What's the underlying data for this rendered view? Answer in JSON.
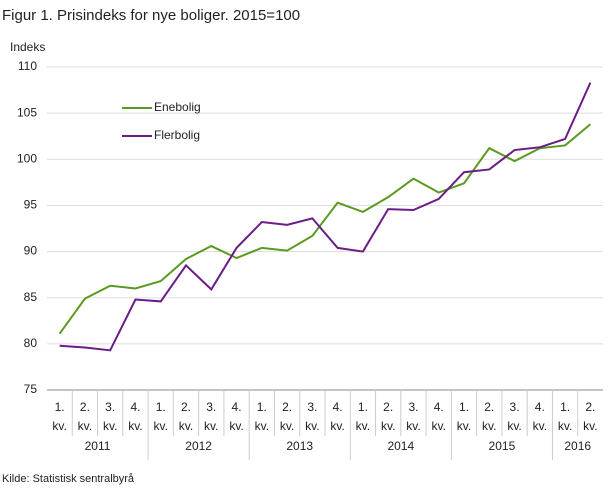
{
  "chart_data": {
    "type": "line",
    "title": "Figur 1. Prisindeks for nye boliger. 2015=100",
    "y_label": "Indeks",
    "source": "Kilde: Statistisk sentralbyrå",
    "categories": [
      [
        "1.",
        "kv."
      ],
      [
        "2.",
        "kv."
      ],
      [
        "3.",
        "kv."
      ],
      [
        "4.",
        "kv."
      ],
      [
        "1.",
        "kv."
      ],
      [
        "2.",
        "kv."
      ],
      [
        "3.",
        "kv."
      ],
      [
        "4.",
        "kv."
      ],
      [
        "1.",
        "kv."
      ],
      [
        "2.",
        "kv."
      ],
      [
        "3.",
        "kv."
      ],
      [
        "4.",
        "kv."
      ],
      [
        "1.",
        "kv."
      ],
      [
        "2.",
        "kv."
      ],
      [
        "3.",
        "kv."
      ],
      [
        "4.",
        "kv."
      ],
      [
        "1.",
        "kv."
      ],
      [
        "2.",
        "kv."
      ],
      [
        "3.",
        "kv."
      ],
      [
        "4.",
        "kv."
      ],
      [
        "1.",
        "kv."
      ],
      [
        "2.",
        "kv."
      ]
    ],
    "groups": [
      "2011",
      "2012",
      "2013",
      "2014",
      "2015",
      "2016"
    ],
    "series": [
      {
        "name": "Enebolig",
        "color": "#5a9a1f",
        "values": [
          81.1,
          84.9,
          86.3,
          86.0,
          86.8,
          89.2,
          90.6,
          89.3,
          90.4,
          90.1,
          91.7,
          95.3,
          94.3,
          95.9,
          97.9,
          96.4,
          97.4,
          101.2,
          99.8,
          101.2,
          101.5,
          103.8
        ]
      },
      {
        "name": "Flerbolig",
        "color": "#6b1d87",
        "values": [
          79.8,
          79.6,
          79.3,
          84.8,
          84.6,
          88.5,
          85.9,
          90.4,
          93.2,
          92.9,
          93.6,
          90.4,
          90.0,
          94.6,
          94.5,
          95.7,
          98.6,
          98.9,
          101.0,
          101.3,
          102.2,
          108.3
        ]
      }
    ],
    "ylim": [
      75,
      110
    ],
    "yticks": [
      75,
      80,
      85,
      90,
      95,
      100,
      105,
      110
    ],
    "grid": true
  }
}
